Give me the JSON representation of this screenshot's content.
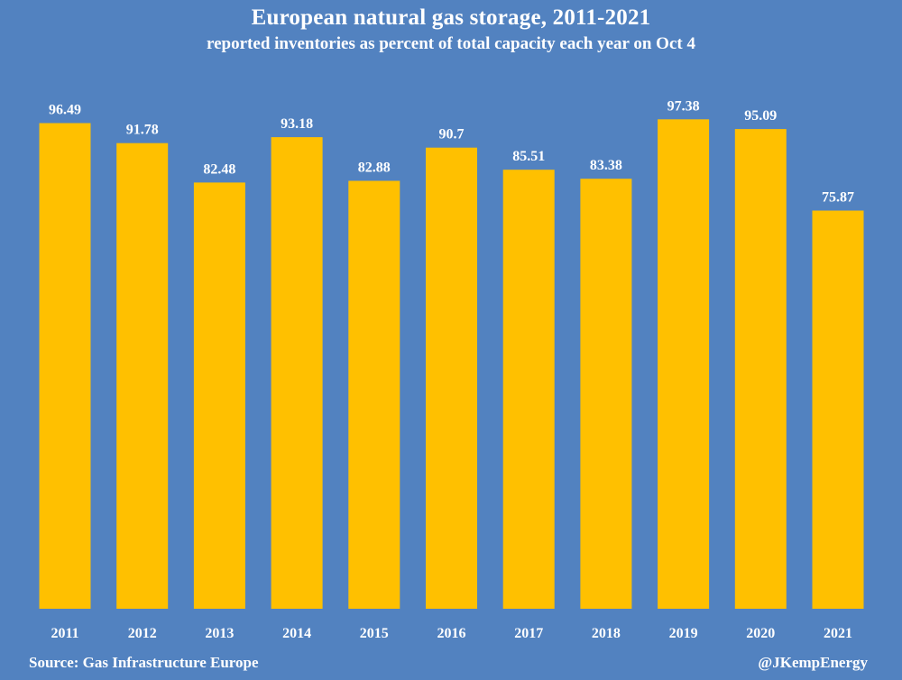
{
  "colors": {
    "background": "#5282c0",
    "bar": "#ffc000",
    "text": "#ffffff"
  },
  "footer": {
    "source": "Source: Gas Infrastructure Europe",
    "credit": "@JKempEnergy"
  },
  "chart_data": {
    "type": "bar",
    "title": "European natural gas storage, 2011-2021",
    "subtitle": "reported inventories as percent of  total capacity each year on Oct 4",
    "xlabel": "",
    "ylabel": "",
    "categories": [
      "2011",
      "2012",
      "2013",
      "2014",
      "2015",
      "2016",
      "2017",
      "2018",
      "2019",
      "2020",
      "2021"
    ],
    "values": [
      96.49,
      91.78,
      82.48,
      93.18,
      82.88,
      90.7,
      85.51,
      83.38,
      97.38,
      95.09,
      75.87
    ],
    "value_labels": [
      "96.49",
      "91.78",
      "82.48",
      "93.18",
      "82.88",
      "90.7",
      "85.51",
      "83.38",
      "97.38",
      "95.09",
      "75.87"
    ],
    "ylim": [
      0,
      100
    ],
    "grid": false,
    "legend": false,
    "data_labels": true
  }
}
